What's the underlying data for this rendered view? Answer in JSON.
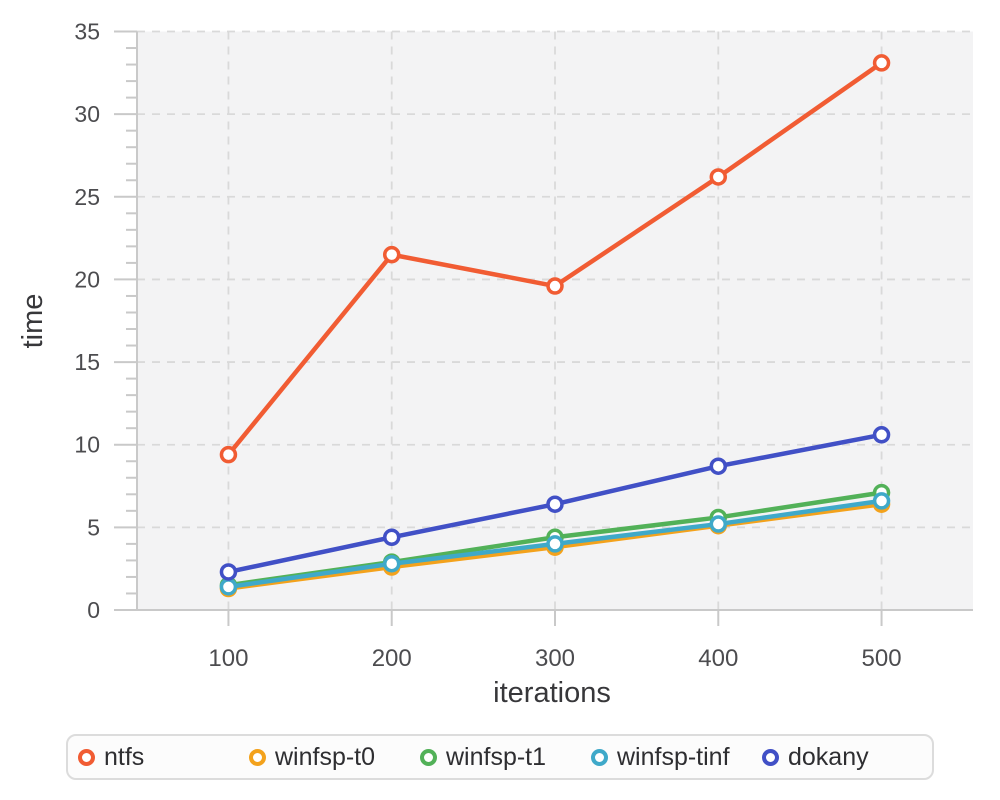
{
  "chart_data": {
    "type": "line",
    "title": "",
    "xlabel": "iterations",
    "ylabel": "time",
    "x": [
      100,
      200,
      300,
      400,
      500
    ],
    "xlim": [
      44,
      556
    ],
    "ylim": [
      0,
      35
    ],
    "xticks": [
      100,
      200,
      300,
      400,
      500
    ],
    "yticks": [
      0,
      5,
      10,
      15,
      20,
      25,
      30,
      35
    ],
    "y_minor_step": 1,
    "grid": "dashed-major-both-axes",
    "legend_position": "bottom",
    "series": [
      {
        "name": "ntfs",
        "color": "#F15C33",
        "values": [
          9.4,
          21.5,
          19.6,
          26.2,
          33.1
        ]
      },
      {
        "name": "winfsp-t0",
        "color": "#F3A21C",
        "values": [
          1.3,
          2.6,
          3.8,
          5.1,
          6.4
        ]
      },
      {
        "name": "winfsp-t1",
        "color": "#52B158",
        "values": [
          1.5,
          2.9,
          4.4,
          5.6,
          7.1
        ]
      },
      {
        "name": "winfsp-tinf",
        "color": "#3FA9C9",
        "values": [
          1.4,
          2.8,
          4.0,
          5.2,
          6.6
        ]
      },
      {
        "name": "dokany",
        "color": "#4150C6",
        "values": [
          2.3,
          4.4,
          6.4,
          8.7,
          10.6
        ]
      }
    ],
    "colors": {
      "plot_background": "#f3f3f4",
      "grid": "#d9d9d9",
      "axis": "#c9c9c9",
      "tick_text": "#4c4c4f",
      "title_text": "#37373a",
      "marker_fill": "#ffffff"
    }
  },
  "legend": {
    "items": [
      "ntfs",
      "winfsp-t0",
      "winfsp-t1",
      "winfsp-tinf",
      "dokany"
    ]
  }
}
